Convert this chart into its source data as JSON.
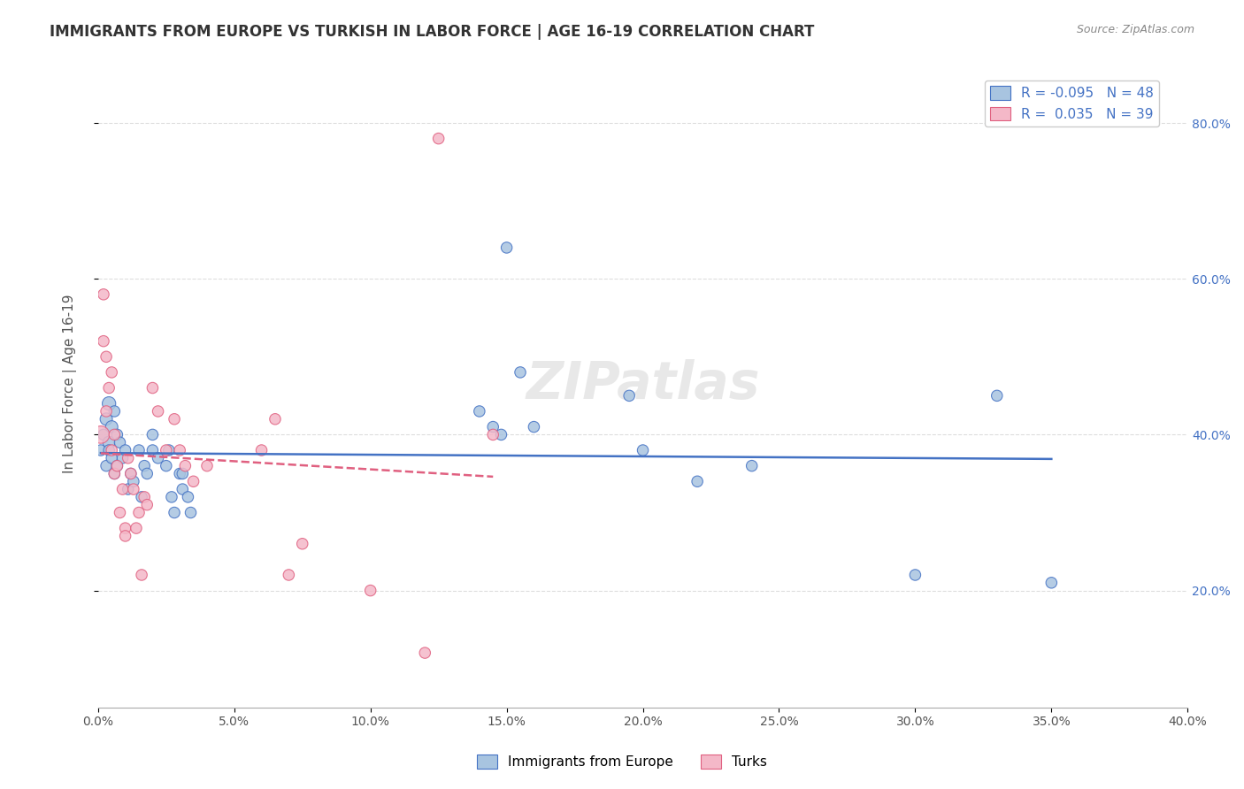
{
  "title": "IMMIGRANTS FROM EUROPE VS TURKISH IN LABOR FORCE | AGE 16-19 CORRELATION CHART",
  "source": "Source: ZipAtlas.com",
  "xlabel": "",
  "ylabel": "In Labor Force | Age 16-19",
  "xlim": [
    0.0,
    0.4
  ],
  "ylim": [
    0.05,
    0.88
  ],
  "xticks": [
    0.0,
    0.05,
    0.1,
    0.15,
    0.2,
    0.25,
    0.3,
    0.35,
    0.4
  ],
  "yticks": [
    0.2,
    0.4,
    0.6,
    0.8
  ],
  "blue_R": -0.095,
  "blue_N": 48,
  "pink_R": 0.035,
  "pink_N": 39,
  "blue_color": "#a8c4e0",
  "pink_color": "#f4b8c8",
  "blue_line_color": "#4472c4",
  "pink_line_color": "#e06080",
  "watermark": "ZIPatlas",
  "blue_scatter_x": [
    0.001,
    0.002,
    0.003,
    0.003,
    0.004,
    0.004,
    0.004,
    0.005,
    0.005,
    0.006,
    0.006,
    0.007,
    0.007,
    0.008,
    0.009,
    0.01,
    0.011,
    0.012,
    0.013,
    0.015,
    0.016,
    0.017,
    0.018,
    0.02,
    0.02,
    0.022,
    0.025,
    0.026,
    0.027,
    0.028,
    0.03,
    0.031,
    0.031,
    0.033,
    0.034,
    0.14,
    0.145,
    0.148,
    0.15,
    0.155,
    0.16,
    0.195,
    0.2,
    0.22,
    0.24,
    0.3,
    0.33,
    0.35
  ],
  "blue_scatter_y": [
    0.38,
    0.4,
    0.42,
    0.36,
    0.44,
    0.39,
    0.38,
    0.41,
    0.37,
    0.43,
    0.35,
    0.4,
    0.36,
    0.39,
    0.37,
    0.38,
    0.33,
    0.35,
    0.34,
    0.38,
    0.32,
    0.36,
    0.35,
    0.38,
    0.4,
    0.37,
    0.36,
    0.38,
    0.32,
    0.3,
    0.35,
    0.35,
    0.33,
    0.32,
    0.3,
    0.43,
    0.41,
    0.4,
    0.64,
    0.48,
    0.41,
    0.45,
    0.38,
    0.34,
    0.36,
    0.22,
    0.45,
    0.21
  ],
  "blue_scatter_size": [
    80,
    80,
    100,
    80,
    120,
    100,
    80,
    100,
    80,
    80,
    80,
    80,
    80,
    80,
    80,
    80,
    80,
    80,
    80,
    80,
    80,
    80,
    80,
    80,
    80,
    80,
    80,
    80,
    80,
    80,
    80,
    80,
    80,
    80,
    80,
    80,
    80,
    80,
    80,
    80,
    80,
    80,
    80,
    80,
    80,
    80,
    80,
    80
  ],
  "pink_scatter_x": [
    0.001,
    0.002,
    0.002,
    0.003,
    0.003,
    0.004,
    0.005,
    0.005,
    0.006,
    0.006,
    0.007,
    0.008,
    0.009,
    0.01,
    0.01,
    0.011,
    0.012,
    0.013,
    0.014,
    0.015,
    0.016,
    0.017,
    0.018,
    0.02,
    0.022,
    0.025,
    0.028,
    0.03,
    0.032,
    0.035,
    0.04,
    0.06,
    0.065,
    0.07,
    0.075,
    0.1,
    0.125,
    0.145,
    0.12
  ],
  "pink_scatter_y": [
    0.4,
    0.58,
    0.52,
    0.43,
    0.5,
    0.46,
    0.48,
    0.38,
    0.4,
    0.35,
    0.36,
    0.3,
    0.33,
    0.28,
    0.27,
    0.37,
    0.35,
    0.33,
    0.28,
    0.3,
    0.22,
    0.32,
    0.31,
    0.46,
    0.43,
    0.38,
    0.42,
    0.38,
    0.36,
    0.34,
    0.36,
    0.38,
    0.42,
    0.22,
    0.26,
    0.2,
    0.78,
    0.4,
    0.12
  ],
  "pink_scatter_size": [
    200,
    80,
    80,
    80,
    80,
    80,
    80,
    80,
    80,
    80,
    80,
    80,
    80,
    80,
    80,
    80,
    80,
    80,
    80,
    80,
    80,
    80,
    80,
    80,
    80,
    80,
    80,
    80,
    80,
    80,
    80,
    80,
    80,
    80,
    80,
    80,
    80,
    80,
    80
  ]
}
